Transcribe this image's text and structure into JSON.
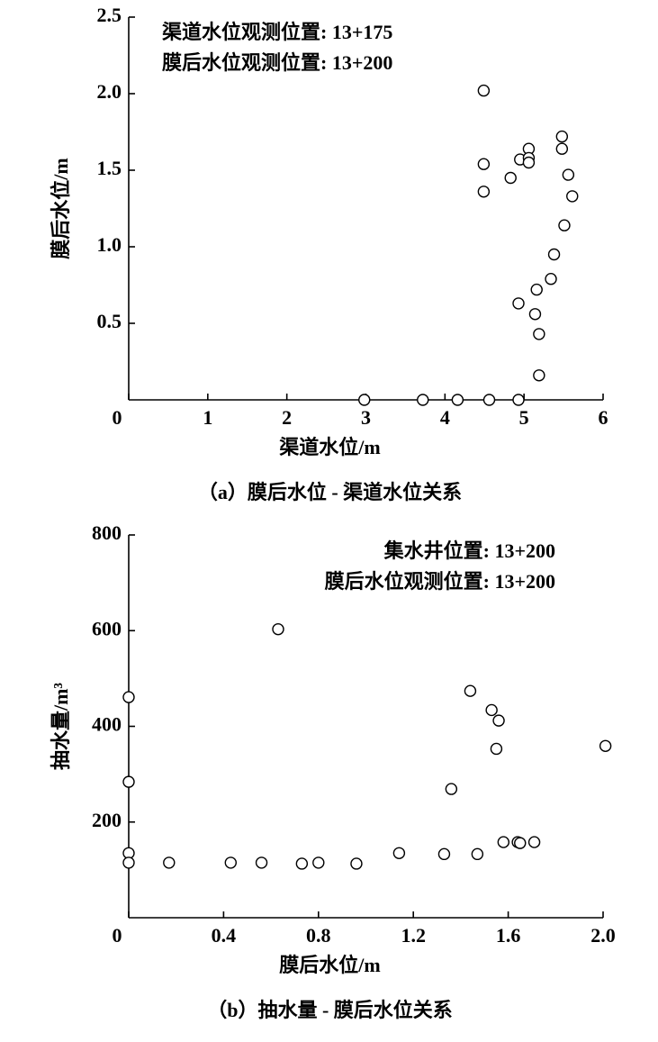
{
  "chart_data": [
    {
      "type": "scatter",
      "caption": "（a）膜后水位 - 渠道水位关系",
      "annotations": [
        "渠道水位观测位置: 13+175",
        "膜后水位观测位置: 13+200"
      ],
      "xlabel": "渠道水位/m",
      "ylabel": "膜后水位/m",
      "xlim": [
        0,
        6
      ],
      "ylim": [
        0,
        2.5
      ],
      "xticks": [
        0,
        1,
        2,
        3,
        4,
        5,
        6
      ],
      "yticks": [
        0.5,
        {
          "value": 1.0,
          "label": "1.0"
        },
        1.5,
        {
          "value": 2.0,
          "label": "2.0"
        },
        2.5
      ],
      "series": [
        {
          "color": "#000000",
          "x": [
            4.49,
            4.49,
            4.49,
            4.83,
            4.95,
            5.06,
            5.06,
            5.06,
            5.48,
            5.48,
            5.56,
            5.61,
            5.51,
            5.38,
            5.34,
            5.16,
            4.93,
            5.14,
            5.19,
            5.19,
            2.98,
            3.72,
            4.16,
            4.56,
            4.93
          ],
          "values": [
            2.02,
            1.54,
            1.36,
            1.45,
            1.57,
            1.64,
            1.58,
            1.55,
            1.72,
            1.64,
            1.47,
            1.33,
            1.14,
            0.95,
            0.79,
            0.72,
            0.63,
            0.56,
            0.43,
            0.16,
            0,
            0,
            0,
            0,
            0
          ]
        }
      ]
    },
    {
      "type": "scatter",
      "caption": "（b）抽水量 - 膜后水位关系",
      "annotations": [
        "集水井位置: 13+200",
        "膜后水位观测位置: 13+200"
      ],
      "xlabel": "膜后水位/m",
      "ylabel": "抽水量/m³",
      "xlim": [
        0,
        2.0
      ],
      "ylim": [
        0,
        800
      ],
      "xticks": [
        0,
        0.4,
        0.8,
        1.2,
        1.6,
        {
          "value": 2.0,
          "label": "2.0"
        }
      ],
      "yticks": [
        200,
        400,
        600,
        800
      ],
      "series": [
        {
          "color": "#000000",
          "x": [
            0,
            0,
            0,
            0,
            0.17,
            0.43,
            0.56,
            0.63,
            0.73,
            0.8,
            0.96,
            1.14,
            1.33,
            1.36,
            1.44,
            1.47,
            1.53,
            1.56,
            1.55,
            1.58,
            1.64,
            1.65,
            1.71,
            2.01
          ],
          "values": [
            461,
            284,
            135,
            115,
            115,
            115,
            115,
            603,
            113,
            115,
            113,
            135,
            133,
            269,
            474,
            133,
            434,
            412,
            353,
            158,
            158,
            156,
            158,
            359
          ]
        }
      ]
    }
  ]
}
